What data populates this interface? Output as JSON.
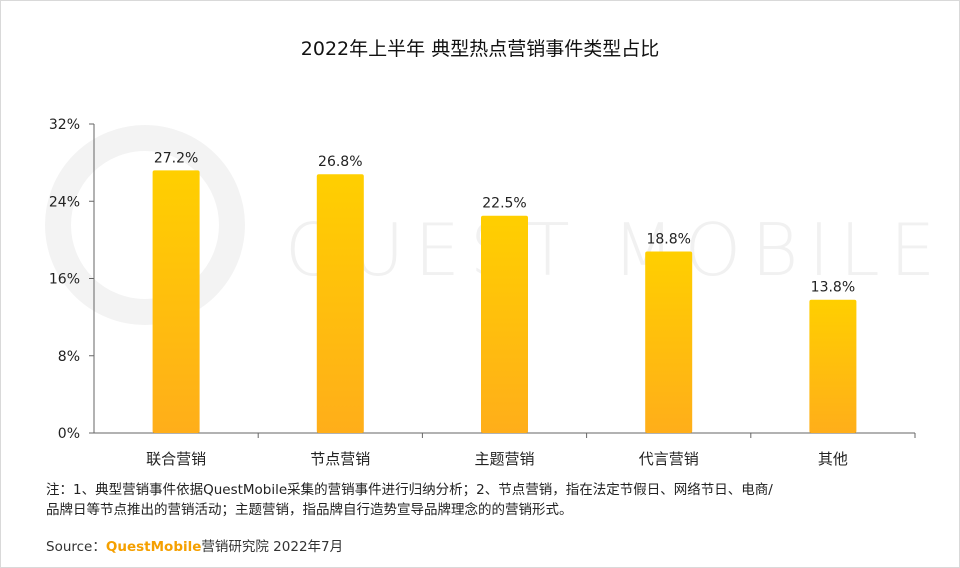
{
  "title": "2022年上半年 典型热点营销事件类型占比",
  "watermark": "QUEST MOBILE",
  "chart_data": {
    "type": "bar",
    "categories": [
      "联合营销",
      "节点营销",
      "主题营销",
      "代言营销",
      "其他"
    ],
    "values": [
      27.2,
      26.8,
      22.5,
      18.8,
      13.8
    ],
    "value_labels": [
      "27.2%",
      "26.8%",
      "22.5%",
      "18.8%",
      "13.8%"
    ],
    "ylim": [
      0,
      32
    ],
    "yticks": [
      0,
      8,
      16,
      24,
      32
    ],
    "ytick_labels": [
      "0%",
      "8%",
      "16%",
      "24%",
      "32%"
    ],
    "xlabel": "",
    "ylabel": "",
    "grid": false,
    "bar_color_top": "#ffcf00",
    "bar_color_bottom": "#ffae1a"
  },
  "note": {
    "line1": "注：1、典型营销事件依据QuestMobile采集的营销事件进行归纳分析；2、节点营销，指在法定节假日、网络节日、电商/",
    "line2": "品牌日等节点推出的营销活动；主题营销，指品牌自行造势宣导品牌理念的的营销形式。"
  },
  "source": {
    "label": "Source：",
    "brand": "QuestMobile",
    "text": "营销研究院 2022年7月"
  }
}
